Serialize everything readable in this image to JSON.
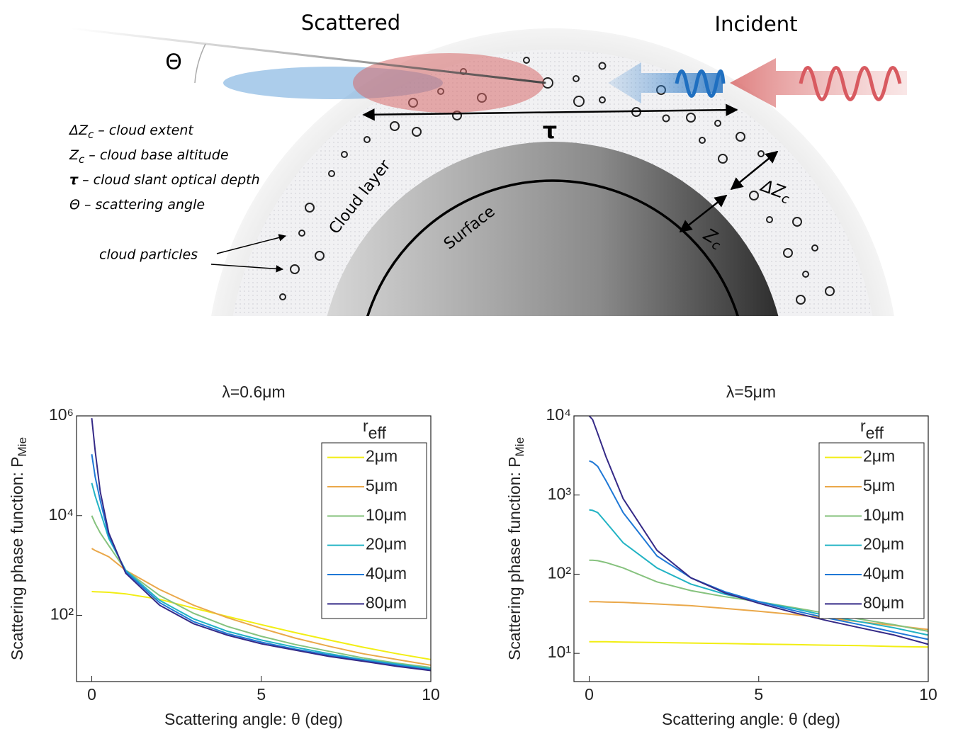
{
  "diagram": {
    "scattered": "Scattered",
    "incident": "Incident",
    "theta": "Θ",
    "tau": "τ",
    "cloud_layer": "Cloud layer",
    "surface": "Surface",
    "zc": {
      "symbol": "Z",
      "sub": "c"
    },
    "dzc": {
      "symbol": "ΔZ",
      "sub": "c"
    },
    "definitions": [
      {
        "symbol": "ΔZ",
        "sub": "c",
        "text": "– cloud extent"
      },
      {
        "symbol": "Z",
        "sub": "c",
        "text": "– cloud base altitude"
      },
      {
        "symbol": "τ",
        "text": "– cloud slant optical depth"
      },
      {
        "symbol": "Θ",
        "text": "– scattering angle"
      }
    ],
    "particles_label": "cloud particles"
  },
  "chart_data": [
    {
      "type": "line",
      "title": "λ=0.6μm",
      "ylabel": "Scattering phase function: P",
      "ylabel_sub": "Mie",
      "xlabel": "Scattering angle: θ (deg)",
      "legend_title": "r",
      "legend_title_sub": "eff",
      "legend": "upper right",
      "log_y": true,
      "xlim": [
        -0.45,
        10
      ],
      "xticks": [
        0,
        5,
        10
      ],
      "ylim": [
        4.7,
        1000000
      ],
      "yticks": [
        {
          "value": 100,
          "label": "10²"
        },
        {
          "value": 10000,
          "label": "10⁴"
        },
        {
          "value": 1000000,
          "label": "10⁶"
        }
      ],
      "x": [
        0,
        0.1,
        0.25,
        0.5,
        1,
        2,
        3,
        4,
        5,
        6,
        7,
        8,
        9,
        10
      ],
      "series": [
        {
          "name": "2μm",
          "color": "#f2ee14",
          "values": [
            300,
            298,
            295,
            290,
            270,
            210,
            140,
            95,
            65,
            45,
            32,
            23,
            17,
            13
          ]
        },
        {
          "name": "5μm",
          "color": "#eaa84a",
          "values": [
            2200,
            2000,
            1800,
            1500,
            800,
            330,
            160,
            90,
            55,
            35,
            24,
            17,
            13,
            10
          ]
        },
        {
          "name": "10μm",
          "color": "#86c27e",
          "values": [
            10000,
            7000,
            4500,
            2500,
            800,
            250,
            110,
            60,
            38,
            26,
            19,
            14,
            11,
            9
          ]
        },
        {
          "name": "20μm",
          "color": "#22b3c4",
          "values": [
            45000,
            25000,
            12000,
            3500,
            800,
            200,
            85,
            48,
            32,
            23,
            17,
            13,
            10.5,
            8.5
          ]
        },
        {
          "name": "40μm",
          "color": "#1f78d6",
          "values": [
            170000,
            60000,
            20000,
            4000,
            750,
            180,
            75,
            43,
            29,
            21,
            16,
            12.5,
            10,
            8
          ]
        },
        {
          "name": "80μm",
          "color": "#352a87",
          "values": [
            900000,
            200000,
            30000,
            4500,
            700,
            160,
            68,
            40,
            27,
            20,
            15,
            12,
            9.5,
            7.8
          ]
        }
      ]
    },
    {
      "type": "line",
      "title": "λ=5μm",
      "ylabel": "Scattering phase function: P",
      "ylabel_sub": "Mie",
      "xlabel": "Scattering angle: θ (deg)",
      "legend_title": "r",
      "legend_title_sub": "eff",
      "legend": "upper right",
      "log_y": true,
      "xlim": [
        -0.45,
        10
      ],
      "xticks": [
        0,
        5,
        10
      ],
      "ylim": [
        4.4,
        10000
      ],
      "yticks": [
        {
          "value": 10,
          "label": "10¹"
        },
        {
          "value": 100,
          "label": "10²"
        },
        {
          "value": 1000,
          "label": "10³"
        },
        {
          "value": 10000,
          "label": "10⁴"
        }
      ],
      "x": [
        0,
        0.1,
        0.25,
        0.5,
        1,
        2,
        3,
        4,
        5,
        6,
        7,
        8,
        9,
        10
      ],
      "series": [
        {
          "name": "2μm",
          "color": "#f2ee14",
          "values": [
            14,
            14,
            14,
            14,
            13.9,
            13.7,
            13.5,
            13.3,
            13.1,
            12.9,
            12.7,
            12.5,
            12.2,
            12
          ]
        },
        {
          "name": "5μm",
          "color": "#eaa84a",
          "values": [
            45,
            45,
            45,
            44.5,
            44,
            42,
            40,
            37,
            34,
            31,
            28,
            25,
            22.5,
            20
          ]
        },
        {
          "name": "10μm",
          "color": "#86c27e",
          "values": [
            150,
            150,
            148,
            140,
            120,
            80,
            62,
            52,
            45,
            38,
            32,
            27,
            23,
            19
          ]
        },
        {
          "name": "20μm",
          "color": "#22b3c4",
          "values": [
            650,
            640,
            600,
            450,
            250,
            120,
            75,
            56,
            45,
            37,
            30,
            25,
            21,
            17
          ]
        },
        {
          "name": "40μm",
          "color": "#1f78d6",
          "values": [
            2700,
            2600,
            2300,
            1500,
            600,
            170,
            90,
            60,
            45,
            35,
            28,
            23,
            18.5,
            15
          ]
        },
        {
          "name": "80μm",
          "color": "#352a87",
          "values": [
            10000,
            9000,
            6000,
            3000,
            900,
            200,
            90,
            58,
            43,
            33,
            26,
            21,
            17,
            13
          ]
        }
      ]
    }
  ]
}
